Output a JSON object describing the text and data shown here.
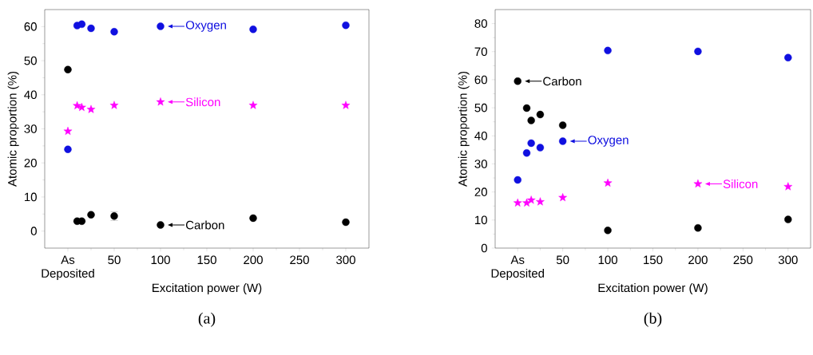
{
  "chart_data": [
    {
      "type": "scatter",
      "x": [
        0,
        10,
        15,
        25,
        50,
        100,
        200,
        300
      ],
      "xlabel": "Excitation power (W)",
      "ylabel": "Atomic proportion (%)",
      "xlim": [
        -25,
        325
      ],
      "ylim": [
        -5,
        65
      ],
      "xticks": [
        {
          "value": 0,
          "label": "As Deposited"
        },
        50,
        100,
        150,
        200,
        250,
        300
      ],
      "yticks": [
        0,
        10,
        20,
        30,
        40,
        50,
        60
      ],
      "series": [
        {
          "color": "#1010e0",
          "marker": "circle",
          "values": [
            24,
            60.3,
            60.7,
            59.5,
            58.5,
            60.1,
            59.2,
            60.4
          ]
        },
        {
          "color": "#ff00ff",
          "marker": "star",
          "values": [
            29.3,
            36.8,
            36.3,
            35.7,
            36.9,
            37.9,
            36.9,
            36.9
          ]
        },
        {
          "color": "#000000",
          "marker": "circle",
          "values": [
            47.4,
            2.9,
            2.9,
            4.8,
            4.4,
            1.8,
            3.8,
            2.6
          ],
          "errors": [
            null,
            null,
            null,
            null,
            1.3,
            null,
            null,
            null
          ]
        }
      ],
      "annotations": [
        {
          "text": "Oxygen",
          "x": 100,
          "y": 60.1
        },
        {
          "text": "Silicon",
          "x": 100,
          "y": 37.9
        },
        {
          "text": "Carbon",
          "x": 100,
          "y": 1.8
        },
        "(a)"
      ]
    },
    {
      "type": "scatter",
      "x": [
        0,
        10,
        15,
        25,
        50,
        100,
        200,
        300
      ],
      "xlabel": "Excitation power (W)",
      "ylabel": "Atomic proportion (%)",
      "xlim": [
        -25,
        325
      ],
      "ylim": [
        0,
        85
      ],
      "xticks": [
        {
          "value": 0,
          "label": "As Deposited"
        },
        50,
        100,
        150,
        200,
        250,
        300
      ],
      "yticks": [
        0,
        10,
        20,
        30,
        40,
        50,
        60,
        70,
        80
      ],
      "series": [
        {
          "color": "#1010e0",
          "marker": "circle",
          "values": [
            24.3,
            33.9,
            37.4,
            35.8,
            38.1,
            70.4,
            70.1,
            67.9
          ]
        },
        {
          "color": "#ff00ff",
          "marker": "star",
          "values": [
            16.1,
            16.1,
            17.1,
            16.5,
            18.0,
            23.2,
            22.9,
            21.9
          ]
        },
        {
          "color": "#000000",
          "marker": "circle",
          "values": [
            59.5,
            49.9,
            45.5,
            47.6,
            43.8,
            6.3,
            7.2,
            10.2
          ]
        }
      ],
      "annotations": [
        {
          "text": "Carbon",
          "x": 0,
          "y": 59.5
        },
        {
          "text": "Oxygen",
          "x": 50,
          "y": 38.1
        },
        {
          "text": "Silicon",
          "x": 200,
          "y": 22.9
        },
        "(b)"
      ]
    }
  ]
}
